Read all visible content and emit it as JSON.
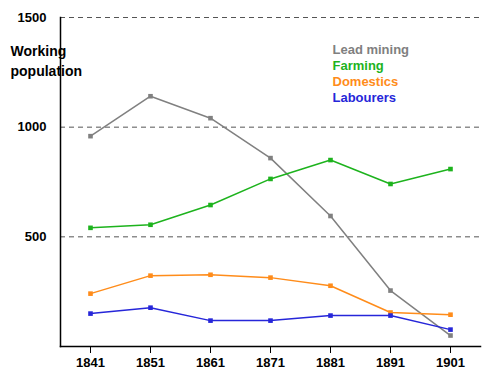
{
  "chart_data": {
    "type": "line",
    "y_label": "Working\npopulation",
    "categories": [
      "1841",
      "1851",
      "1861",
      "1871",
      "1881",
      "1891",
      "1901"
    ],
    "series": [
      {
        "name": "Lead mining",
        "color": "#808080",
        "values": [
          959,
          1141,
          1041,
          859,
          595,
          255,
          50
        ]
      },
      {
        "name": "Farming",
        "color": "#1db31d",
        "values": [
          541,
          555,
          645,
          764,
          850,
          741,
          809
        ]
      },
      {
        "name": "Domestics",
        "color": "#ff8c1a",
        "values": [
          241,
          323,
          327,
          314,
          277,
          155,
          145
        ]
      },
      {
        "name": "Labourers",
        "color": "#2626d9",
        "values": [
          150,
          177,
          118,
          118,
          141,
          141,
          77
        ]
      }
    ],
    "ylim": [
      0,
      1500
    ],
    "yticks": [
      500,
      1000,
      1500
    ],
    "grid": true,
    "legend": "top-right",
    "marker": "square",
    "line_style": "solid"
  }
}
